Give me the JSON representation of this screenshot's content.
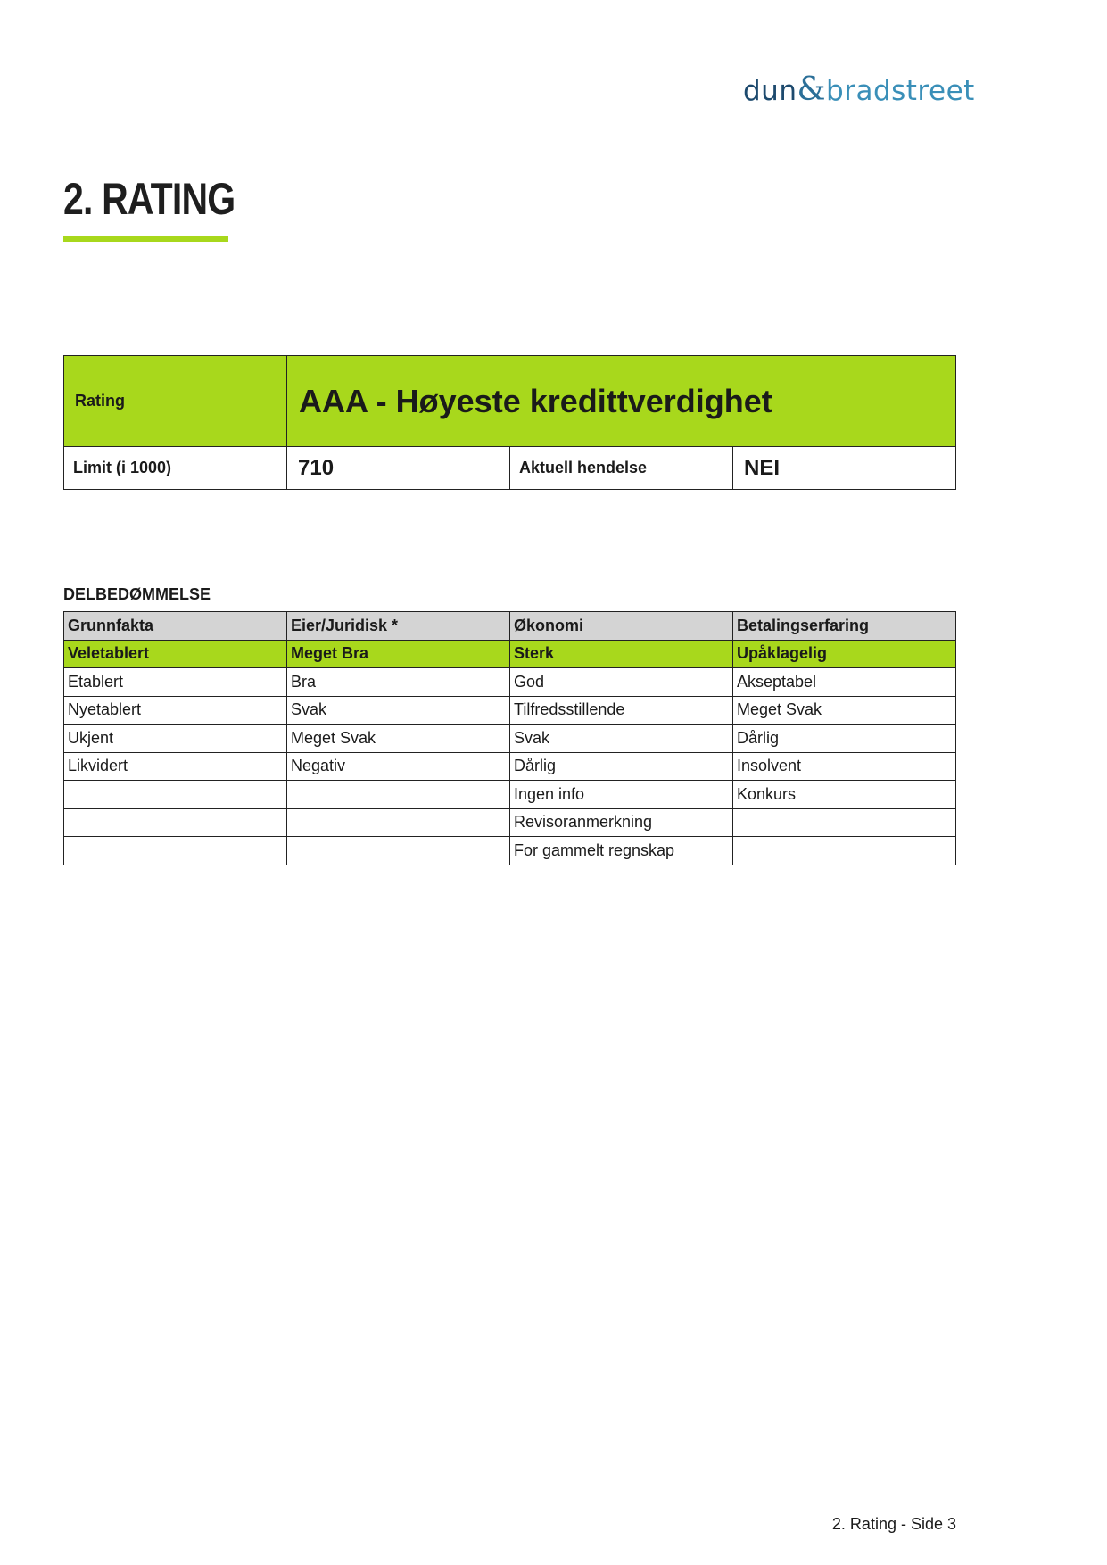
{
  "logo": {
    "part1": "dun",
    "amp": "&",
    "part2": "bradstreet"
  },
  "title": "2. RATING",
  "accent_color": "#a8d81c",
  "rating_table": {
    "rating_label": "Rating",
    "rating_value": "AAA - Høyeste kredittverdighet",
    "limit_label": "Limit (i 1000)",
    "limit_value": "710",
    "event_label": "Aktuell hendelse",
    "event_value": "NEI"
  },
  "subratings": {
    "title": "DELBEDØMMELSE",
    "headers": [
      "Grunnfakta",
      "Eier/Juridisk *",
      "Økonomi",
      "Betalingserfaring"
    ],
    "rows": [
      [
        "Veletablert",
        "Meget Bra",
        "Sterk",
        "Upåklagelig"
      ],
      [
        "Etablert",
        "Bra",
        "God",
        "Akseptabel"
      ],
      [
        "Nyetablert",
        "Svak",
        "Tilfredsstillende",
        "Meget Svak"
      ],
      [
        "Ukjent",
        "Meget Svak",
        "Svak",
        "Dårlig"
      ],
      [
        "Likvidert",
        "Negativ",
        "Dårlig",
        "Insolvent"
      ],
      [
        "",
        "",
        "Ingen info",
        "Konkurs"
      ],
      [
        "",
        "",
        "Revisoranmerkning",
        ""
      ],
      [
        "",
        "",
        "For gammelt regnskap",
        ""
      ]
    ]
  },
  "footer": "2. Rating - Side 3"
}
